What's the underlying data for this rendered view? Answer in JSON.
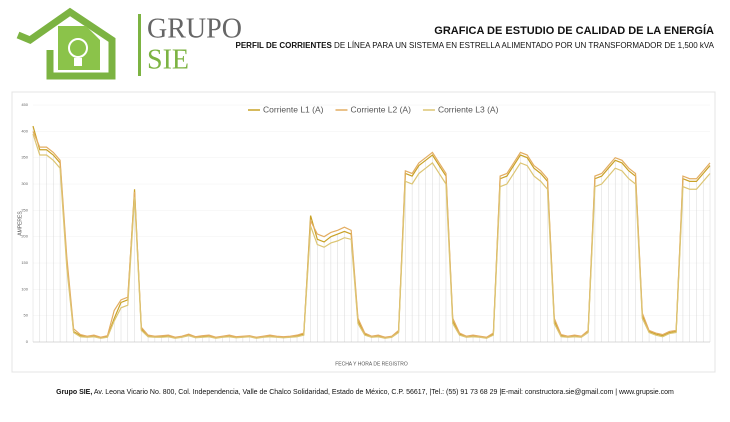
{
  "header": {
    "logo_name": "GRUPO",
    "logo_sub": "SIE",
    "title": "GRAFICA DE ESTUDIO DE CALIDAD DE LA ENERGÍA",
    "subtitle_bold": "PERFIL DE CORRIENTES",
    "subtitle_rest": " DE LÍNEA PARA UN SISTEMA EN ESTRELLA ALIMENTADO POR UN TRANSFORMADOR DE 1,500 kVA"
  },
  "chart_data": {
    "type": "line",
    "ylabel": "AMPERES",
    "xlabel": "FECHA Y HORA DE REGISTRO",
    "ylim": [
      0,
      450
    ],
    "yticks": [
      0,
      50,
      100,
      150,
      200,
      250,
      300,
      350,
      400,
      450
    ],
    "legend": "top",
    "series": [
      {
        "name": "Corriente L1 (A)",
        "color": "#c9a227",
        "values": [
          410,
          365,
          365,
          355,
          340,
          150,
          20,
          12,
          10,
          12,
          8,
          10,
          45,
          75,
          80,
          290,
          25,
          12,
          10,
          10,
          12,
          8,
          10,
          14,
          9,
          10,
          12,
          8,
          10,
          12,
          9,
          10,
          11,
          8,
          10,
          12,
          10,
          9,
          10,
          12,
          15,
          240,
          195,
          190,
          200,
          205,
          210,
          205,
          40,
          15,
          10,
          12,
          8,
          10,
          20,
          320,
          315,
          335,
          345,
          355,
          335,
          315,
          40,
          15,
          10,
          12,
          10,
          8,
          15,
          310,
          315,
          335,
          355,
          350,
          330,
          320,
          305,
          40,
          12,
          10,
          12,
          10,
          20,
          310,
          315,
          330,
          345,
          340,
          325,
          315,
          50,
          20,
          15,
          12,
          18,
          20,
          310,
          305,
          305,
          320,
          335
        ]
      },
      {
        "name": "Corriente L2 (A)",
        "color": "#e3ad62",
        "values": [
          400,
          370,
          370,
          360,
          345,
          160,
          25,
          14,
          11,
          13,
          9,
          12,
          60,
          80,
          85,
          285,
          28,
          13,
          11,
          12,
          13,
          9,
          11,
          15,
          10,
          12,
          13,
          9,
          11,
          13,
          10,
          11,
          12,
          9,
          11,
          13,
          11,
          10,
          11,
          13,
          17,
          230,
          205,
          200,
          208,
          212,
          218,
          212,
          45,
          17,
          11,
          13,
          9,
          11,
          22,
          325,
          320,
          340,
          350,
          360,
          340,
          320,
          45,
          17,
          11,
          13,
          11,
          9,
          17,
          315,
          320,
          340,
          360,
          355,
          335,
          325,
          310,
          45,
          14,
          11,
          13,
          11,
          22,
          315,
          320,
          335,
          350,
          345,
          330,
          320,
          55,
          22,
          17,
          14,
          20,
          22,
          315,
          310,
          310,
          325,
          340
        ]
      },
      {
        "name": "Corriente L3 (A)",
        "color": "#dcc574",
        "values": [
          395,
          355,
          355,
          345,
          330,
          140,
          18,
          10,
          9,
          10,
          7,
          9,
          40,
          65,
          70,
          275,
          22,
          10,
          9,
          9,
          10,
          7,
          9,
          12,
          8,
          9,
          10,
          7,
          9,
          10,
          8,
          9,
          10,
          7,
          9,
          10,
          9,
          8,
          9,
          10,
          13,
          220,
          185,
          180,
          188,
          192,
          198,
          195,
          35,
          13,
          9,
          10,
          7,
          9,
          18,
          305,
          300,
          320,
          330,
          340,
          320,
          300,
          35,
          13,
          9,
          10,
          9,
          7,
          13,
          295,
          300,
          320,
          340,
          335,
          315,
          305,
          290,
          35,
          10,
          9,
          10,
          9,
          18,
          295,
          300,
          315,
          330,
          325,
          310,
          300,
          45,
          18,
          13,
          10,
          16,
          18,
          295,
          290,
          290,
          305,
          320
        ]
      }
    ]
  },
  "footer": {
    "bold": "Grupo SIE,",
    "text": "  Av. Leona Vicario No. 800, Col. Independencia, Valle de Chalco Solidaridad, Estado de México, C.P. 56617, |Tel.: (55) 91 73 68 29 |E-mail: constructora.sie@gmail.com | www.grupsie.com"
  }
}
